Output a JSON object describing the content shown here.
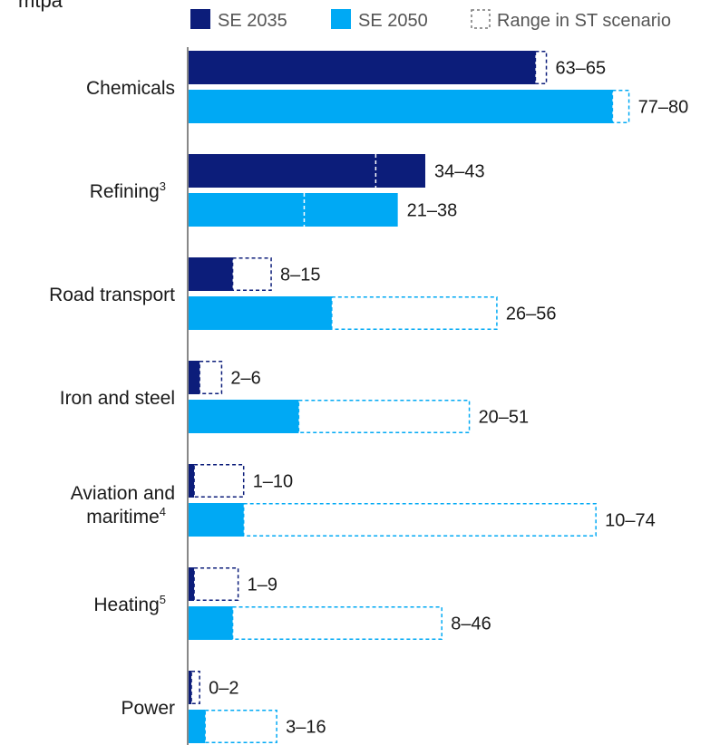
{
  "chart_data": {
    "type": "bar",
    "orientation": "horizontal",
    "unit_label": "mtpa",
    "categories": [
      {
        "label": "Chemicals",
        "sup": ""
      },
      {
        "label": "Refining",
        "sup": "3"
      },
      {
        "label": "Road transport",
        "sup": ""
      },
      {
        "label": "Iron and steel",
        "sup": ""
      },
      {
        "label": "Aviation and maritime",
        "sup": "4"
      },
      {
        "label": "Heating",
        "sup": "5"
      },
      {
        "label": "Power",
        "sup": ""
      }
    ],
    "series": [
      {
        "name": "SE 2035",
        "color": "#0c1d7a",
        "values": [
          63,
          43,
          8,
          2,
          1,
          1,
          0.5
        ],
        "range_low": [
          63,
          34,
          8,
          2,
          1,
          1,
          0
        ],
        "range_high": [
          65,
          43,
          15,
          6,
          10,
          9,
          2
        ],
        "range_labels": [
          "63–65",
          "34–43",
          "8–15",
          "2–6",
          "1–10",
          "1–9",
          "0–2"
        ]
      },
      {
        "name": "SE 2050",
        "color": "#00a9f4",
        "values": [
          77,
          38,
          26,
          20,
          10,
          8,
          3
        ],
        "range_low": [
          77,
          21,
          26,
          20,
          10,
          8,
          3
        ],
        "range_high": [
          80,
          38,
          56,
          51,
          74,
          46,
          16
        ],
        "range_labels": [
          "77–80",
          "21–38",
          "26–56",
          "20–51",
          "10–74",
          "8–46",
          "3–16"
        ]
      }
    ],
    "legend": {
      "placement": "top",
      "range_entry": "Range in ST scenario"
    },
    "xlim": [
      0,
      82
    ]
  }
}
